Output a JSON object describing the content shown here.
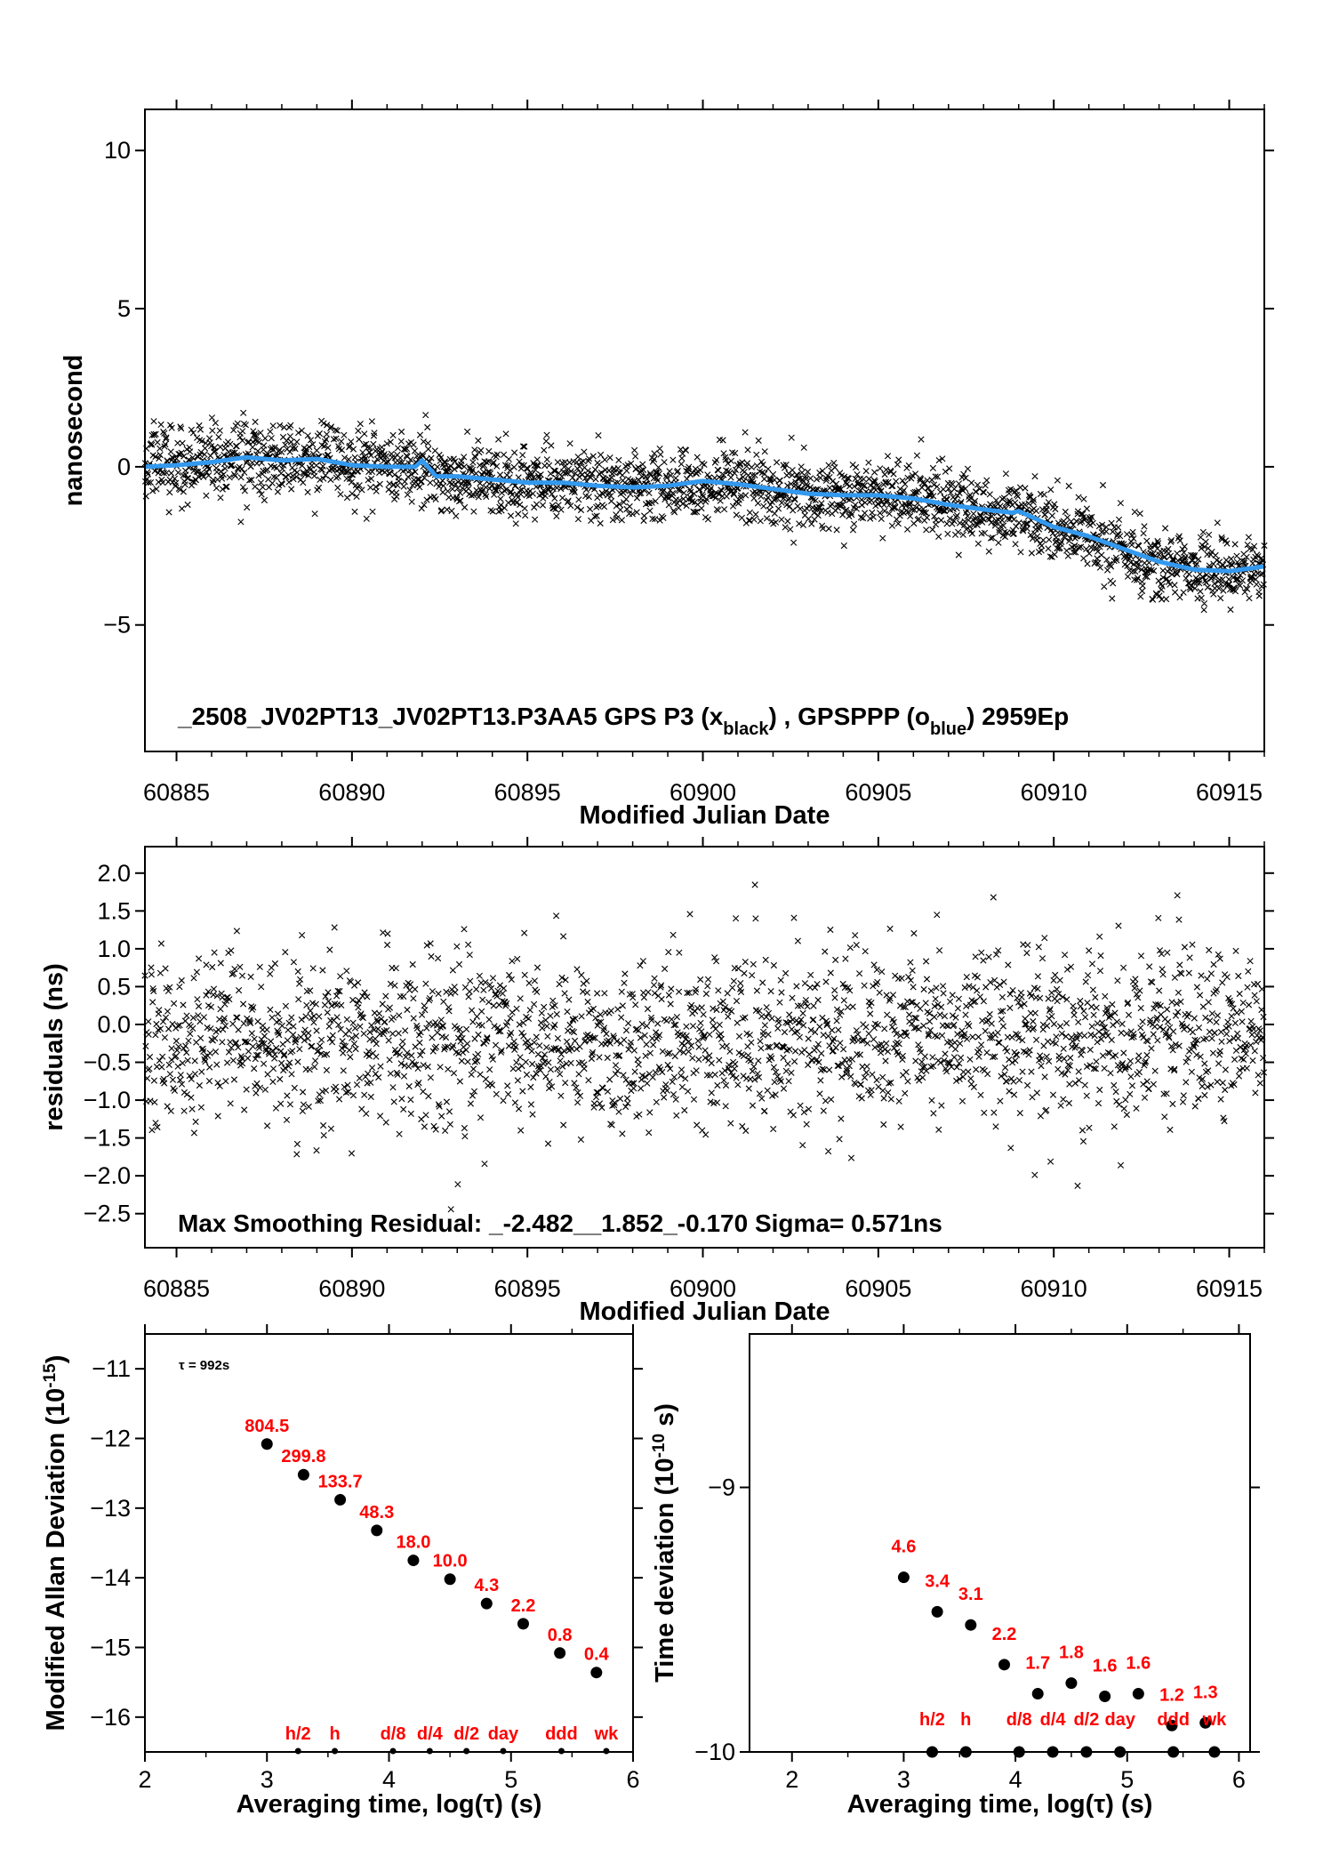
{
  "colors": {
    "axis": "#000000",
    "black_series": "#000000",
    "blue_series": "#3399ee",
    "red_labels": "#ff0000"
  },
  "chart_data": [
    {
      "id": "phase",
      "type": "scatter",
      "xlabel": "Modified Julian Date",
      "ylabel": "nanosecond",
      "xlim": [
        60884.1,
        60916.0
      ],
      "ylim": [
        -9.0,
        11.3
      ],
      "xticks": [
        60885,
        60890,
        60895,
        60900,
        60905,
        60910,
        60915
      ],
      "yticks": [
        10,
        5,
        0,
        -5
      ],
      "ytick_labels": [
        "10",
        "5",
        "0",
        "−5"
      ],
      "annotation": {
        "prefix": "_2508_JV02PT13_JV02PT13.P3AA5     GPS P3 (x",
        "sub1": "black",
        "mid": ") ,  GPSPPP (o",
        "sub2": "blue",
        "suffix": ")  2959Ep"
      },
      "series": [
        {
          "name": "GPS P3",
          "marker": "x",
          "color": "#000000",
          "note": "approx. 2959 noisy points scattered about the smooth trend, sigma approx. 0.57 ns"
        },
        {
          "name": "GPSPPP",
          "marker": "o",
          "color": "#3399ee",
          "trend_x": [
            60884.1,
            60885,
            60886,
            60887,
            60888,
            60889,
            60890,
            60891,
            60891.8,
            60892,
            60892.4,
            60893,
            60894,
            60895,
            60896,
            60897,
            60898,
            60899,
            60900,
            60901,
            60902,
            60903,
            60904,
            60905,
            60906,
            60907,
            60908,
            60908.8,
            60909,
            60910,
            60911,
            60912,
            60913,
            60914,
            60915,
            60916
          ],
          "trend_y": [
            0.0,
            0.05,
            0.15,
            0.3,
            0.2,
            0.25,
            0.05,
            0.0,
            0.0,
            0.2,
            -0.3,
            -0.3,
            -0.4,
            -0.5,
            -0.5,
            -0.6,
            -0.65,
            -0.6,
            -0.45,
            -0.55,
            -0.7,
            -0.85,
            -0.9,
            -0.9,
            -1.0,
            -1.2,
            -1.35,
            -1.45,
            -1.4,
            -1.9,
            -2.2,
            -2.6,
            -3.0,
            -3.25,
            -3.3,
            -3.15
          ]
        }
      ]
    },
    {
      "id": "residuals",
      "type": "scatter",
      "xlabel": "Modified Julian Date",
      "ylabel": "residuals (ns)",
      "xlim": [
        60884.1,
        60916.0
      ],
      "ylim": [
        -2.95,
        2.35
      ],
      "xticks": [
        60885,
        60890,
        60895,
        60900,
        60905,
        60910,
        60915
      ],
      "yticks": [
        2.0,
        1.5,
        1.0,
        0.5,
        0.0,
        -0.5,
        -1.0,
        -1.5,
        -2.0,
        -2.5
      ],
      "ytick_labels": [
        "2.0",
        "1.5",
        "1.0",
        "0.5",
        "0.0",
        "−0.5",
        "−1.0",
        "−1.5",
        "−2.0",
        "−2.5"
      ],
      "annotation": "Max Smoothing Residual: _-2.482__1.852_-0.170  Sigma= 0.571ns",
      "series": [
        {
          "marker": "x",
          "color": "#000000",
          "min": -2.482,
          "max": 1.852,
          "mean": -0.17,
          "sigma": 0.571
        }
      ]
    },
    {
      "id": "mdev",
      "type": "scatter",
      "xlabel": "Averaging time, log(τ) (s)",
      "ylabel": "Modified Allan Deviation (10",
      "ylabel_sup": "-15",
      "ylabel_suffix": ")",
      "xlim": [
        2,
        6
      ],
      "ylim": [
        -16.5,
        -10.5
      ],
      "xticks": [
        2,
        3,
        4,
        5,
        6
      ],
      "yticks": [
        -11,
        -12,
        -13,
        -14,
        -15,
        -16
      ],
      "ytick_labels": [
        "−11",
        "−12",
        "−13",
        "−14",
        "−15",
        "−16"
      ],
      "tau_note": "τ = 992s",
      "x": [
        3.0,
        3.3,
        3.6,
        3.9,
        4.2,
        4.5,
        4.8,
        5.1,
        5.4,
        5.7
      ],
      "y": [
        -12.08,
        -12.52,
        -12.88,
        -13.32,
        -13.75,
        -14.02,
        -14.37,
        -14.66,
        -15.08,
        -15.36
      ],
      "point_labels": [
        "804.5",
        "299.8",
        "133.7",
        "48.3",
        "18.0",
        "10.0",
        "4.3",
        "2.2",
        "0.8",
        "0.4"
      ],
      "marker_labels": [
        "h/2",
        "h",
        "d/8",
        "d/4",
        "d/2",
        "day",
        "ddd",
        "wk"
      ],
      "marker_x": [
        3.255,
        3.556,
        4.033,
        4.334,
        4.635,
        4.936,
        5.413,
        5.781
      ]
    },
    {
      "id": "tdev",
      "type": "scatter",
      "xlabel": "Averaging time, log(τ) (s)",
      "ylabel": "Time deviation (10",
      "ylabel_sup": "-10",
      "ylabel_suffix": " s)",
      "xlim": [
        1.62,
        6.1
      ],
      "ylim": [
        -10.0,
        -8.42
      ],
      "xticks": [
        2,
        3,
        4,
        5,
        6
      ],
      "yticks": [
        -9,
        -10
      ],
      "ytick_labels": [
        "−9",
        "−10"
      ],
      "x": [
        3.0,
        3.3,
        3.6,
        3.9,
        4.2,
        4.5,
        4.8,
        5.1,
        5.4,
        5.7
      ],
      "y": [
        -9.34,
        -9.47,
        -9.52,
        -9.67,
        -9.78,
        -9.74,
        -9.79,
        -9.78,
        -9.9,
        -9.89
      ],
      "point_labels": [
        "4.6",
        "3.4",
        "3.1",
        "2.2",
        "1.7",
        "1.8",
        "1.6",
        "1.6",
        "1.2",
        "1.3"
      ],
      "marker_labels": [
        "h/2",
        "h",
        "d/8",
        "d/4",
        "d/2",
        "day",
        "ddd",
        "wk"
      ],
      "marker_x": [
        3.255,
        3.556,
        4.033,
        4.334,
        4.635,
        4.936,
        5.413,
        5.781
      ]
    }
  ]
}
